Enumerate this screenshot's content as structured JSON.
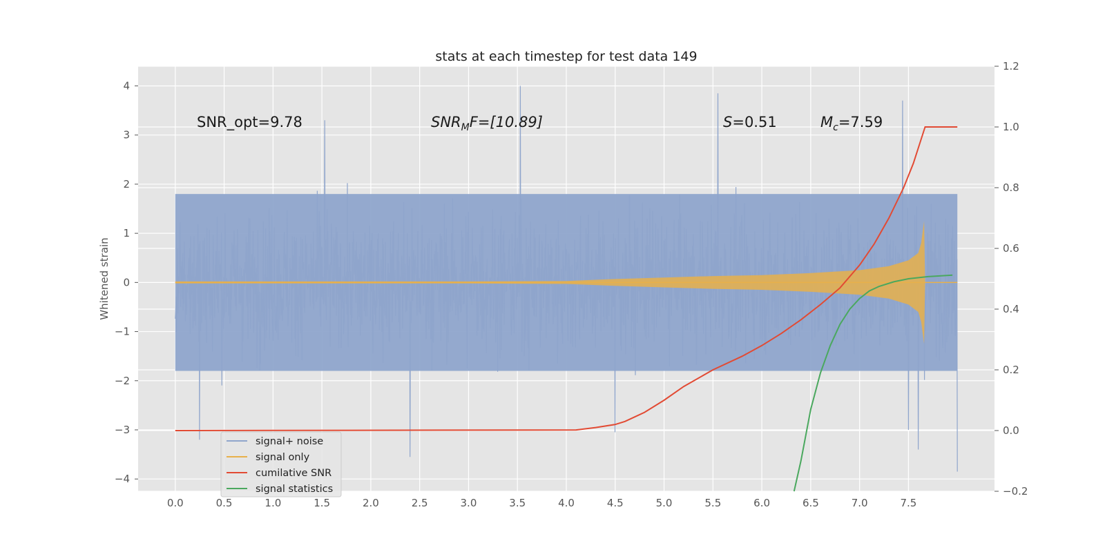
{
  "chart_data": {
    "type": "line",
    "title": "stats at each timestep for test data 149",
    "ylabel": "Whitened strain",
    "xlabel": "",
    "xlim": [
      -0.38,
      8.38
    ],
    "ylim": [
      -4.25,
      4.4
    ],
    "y2lim": [
      -0.2,
      1.2
    ],
    "x_ticks": [
      0.0,
      0.5,
      1.0,
      1.5,
      2.0,
      2.5,
      3.0,
      3.5,
      4.0,
      4.5,
      5.0,
      5.5,
      6.0,
      6.5,
      7.0,
      7.5
    ],
    "x_tick_labels": [
      "0.0",
      "0.5",
      "1.0",
      "1.5",
      "2.0",
      "2.5",
      "3.0",
      "3.5",
      "4.0",
      "4.5",
      "5.0",
      "5.5",
      "6.0",
      "6.5",
      "7.0",
      "7.5"
    ],
    "y_ticks": [
      4,
      3,
      2,
      1,
      0,
      -1,
      -2,
      -3,
      -4
    ],
    "y_tick_labels": [
      "4",
      "3",
      "2",
      "1",
      "0",
      "−1",
      "−2",
      "−3",
      "−4"
    ],
    "y2_ticks": [
      1.2,
      1.0,
      0.8,
      0.6,
      0.4,
      0.2,
      0.0,
      -0.2
    ],
    "y2_tick_labels": [
      "1.2",
      "1.0",
      "0.8",
      "0.6",
      "0.4",
      "0.2",
      "0.0",
      "−0.2"
    ],
    "grid": true,
    "legend_position": "lower-left",
    "annotations": {
      "snr_opt": "SNR_opt=9.78",
      "snr_mf_main": "SNR",
      "snr_mf_sub": "M",
      "snr_mf_rest": "F=[10.89]",
      "s_main": "S",
      "s_rest": "=0.51",
      "mc_main": "M",
      "mc_sub": "c",
      "mc_rest": "=7.59"
    },
    "series": [
      {
        "name": "signal+ noise",
        "axis": "left",
        "color": "#8fa5cc",
        "x_range": [
          0.0,
          8.0
        ],
        "envelope_values": [
          -1.8,
          1.8
        ],
        "peaks": [
          [
            3.53,
            4.0
          ],
          [
            5.55,
            3.85
          ],
          [
            7.44,
            3.7
          ],
          [
            2.4,
            -3.55
          ],
          [
            8.0,
            -3.85
          ],
          [
            7.6,
            -3.4
          ],
          [
            1.53,
            3.3
          ],
          [
            7.5,
            -3.0
          ],
          [
            4.5,
            -3.05
          ],
          [
            0.25,
            -3.2
          ]
        ]
      },
      {
        "name": "signal only",
        "axis": "left",
        "color": "#e8b04a",
        "x": [
          0.0,
          2.0,
          3.0,
          4.0,
          4.5,
          5.0,
          5.5,
          6.0,
          6.5,
          7.0,
          7.3,
          7.5,
          7.6,
          7.63,
          7.66,
          7.67,
          8.0
        ],
        "upper": [
          0.02,
          0.02,
          0.02,
          0.03,
          0.07,
          0.1,
          0.13,
          0.15,
          0.19,
          0.25,
          0.33,
          0.45,
          0.6,
          0.8,
          1.25,
          0.0,
          0.0
        ],
        "lower": [
          -0.02,
          -0.02,
          -0.02,
          -0.03,
          -0.07,
          -0.1,
          -0.13,
          -0.15,
          -0.19,
          -0.25,
          -0.33,
          -0.45,
          -0.6,
          -0.8,
          -1.25,
          0.0,
          0.0
        ]
      },
      {
        "name": "cumilative SNR",
        "axis": "right",
        "color": "#e24a33",
        "x": [
          0.0,
          4.1,
          4.3,
          4.5,
          4.6,
          4.7,
          4.8,
          5.0,
          5.2,
          5.5,
          5.8,
          6.0,
          6.2,
          6.4,
          6.6,
          6.8,
          7.0,
          7.15,
          7.3,
          7.45,
          7.55,
          7.62,
          7.67,
          7.75,
          8.0
        ],
        "values": [
          0.0,
          0.002,
          0.01,
          0.02,
          0.03,
          0.045,
          0.06,
          0.1,
          0.145,
          0.2,
          0.245,
          0.28,
          0.32,
          0.365,
          0.415,
          0.47,
          0.545,
          0.615,
          0.7,
          0.8,
          0.88,
          0.95,
          1.0,
          1.0,
          1.0
        ]
      },
      {
        "name": "signal statistics",
        "axis": "right",
        "color": "#4aa85e",
        "x": [
          6.33,
          6.4,
          6.5,
          6.6,
          6.7,
          6.8,
          6.9,
          7.0,
          7.1,
          7.2,
          7.35,
          7.5,
          7.7,
          7.95
        ],
        "values": [
          -0.2,
          -0.1,
          0.07,
          0.19,
          0.28,
          0.35,
          0.4,
          0.435,
          0.46,
          0.475,
          0.49,
          0.5,
          0.507,
          0.512
        ]
      }
    ]
  }
}
